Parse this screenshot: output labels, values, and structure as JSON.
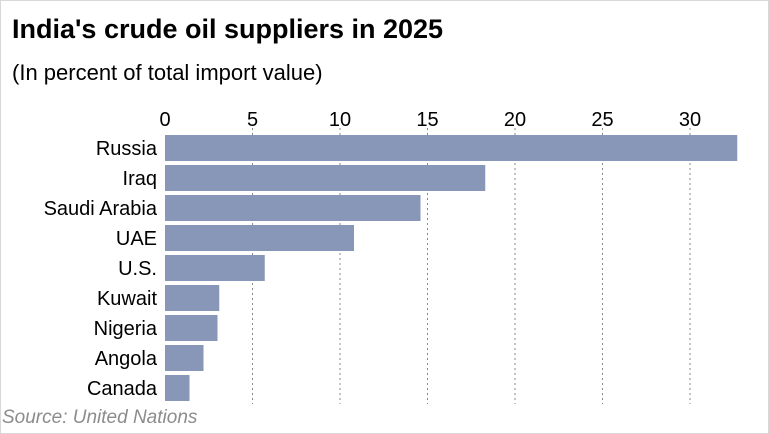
{
  "header": {
    "title": "India's crude oil suppliers in 2025",
    "subtitle": "(In percent of total import value)"
  },
  "footer": {
    "source": "Source: United Nations"
  },
  "chart_data": {
    "type": "bar",
    "orientation": "horizontal",
    "title": "India's crude oil suppliers in 2025",
    "subtitle": "(In percent of total import value)",
    "xlabel": "",
    "ylabel": "",
    "xlim": [
      0,
      33
    ],
    "x_ticks": [
      0,
      5,
      10,
      15,
      20,
      25,
      30
    ],
    "x_axis_position": "top",
    "grid": "vertical dotted",
    "bar_color": "#8896b8",
    "grid_color": "#8a8a8a",
    "categories": [
      "Russia",
      "Iraq",
      "Saudi Arabia",
      "UAE",
      "U.S.",
      "Kuwait",
      "Nigeria",
      "Angola",
      "Canada"
    ],
    "values": [
      32.7,
      18.3,
      14.6,
      10.8,
      5.7,
      3.1,
      3.0,
      2.2,
      1.4
    ],
    "source": "Source: United Nations"
  }
}
